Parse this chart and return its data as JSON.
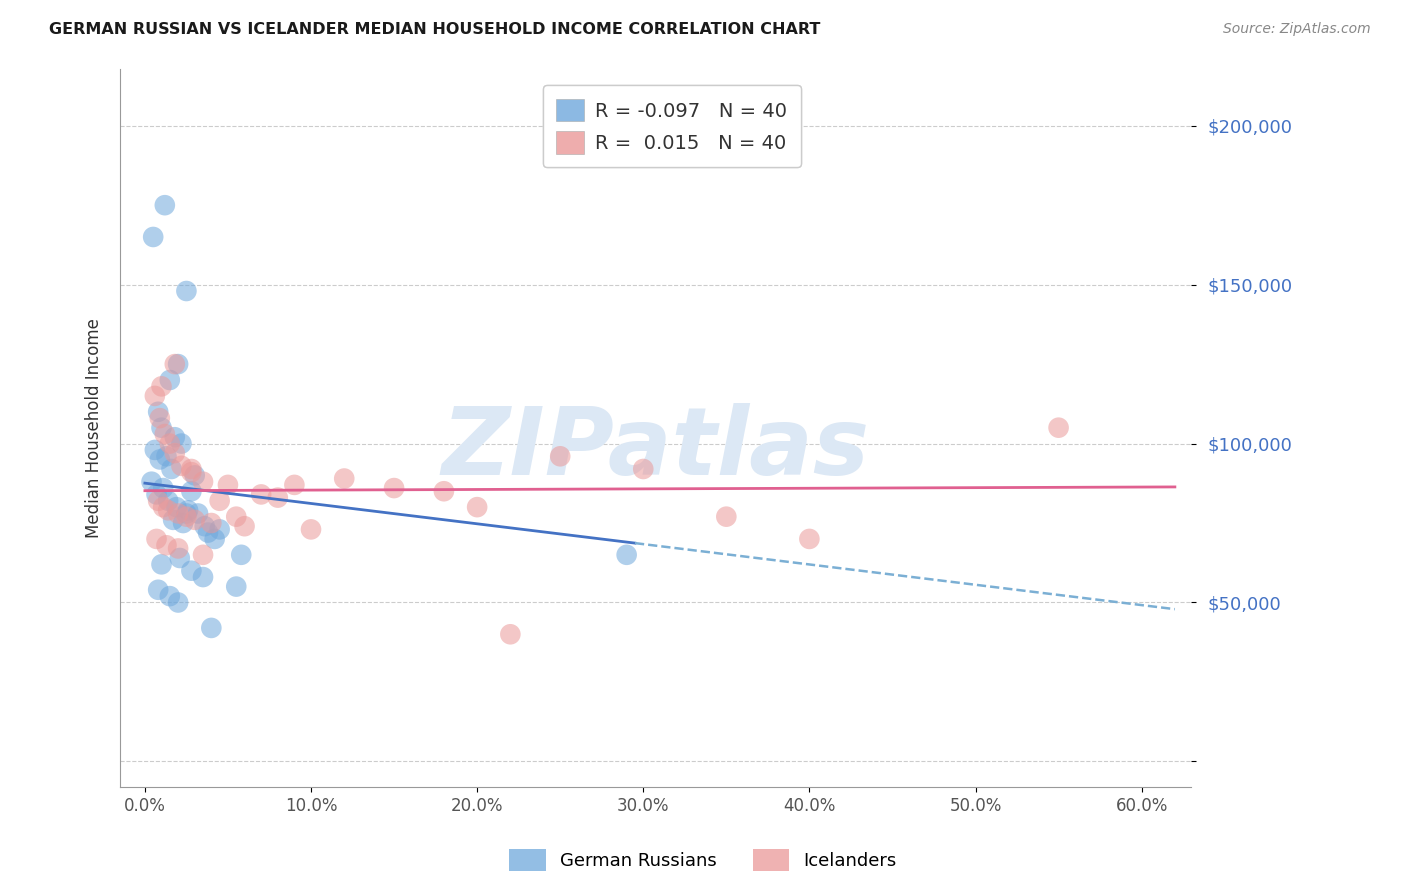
{
  "title": "GERMAN RUSSIAN VS ICELANDER MEDIAN HOUSEHOLD INCOME CORRELATION CHART",
  "source": "Source: ZipAtlas.com",
  "ylabel": "Median Household Income",
  "ytick_vals": [
    0,
    50000,
    100000,
    150000,
    200000
  ],
  "ytick_labels": [
    "",
    "$50,000",
    "$100,000",
    "$150,000",
    "$200,000"
  ],
  "xtick_vals": [
    0,
    10,
    20,
    30,
    40,
    50,
    60
  ],
  "xtick_labels": [
    "0.0%",
    "10.0%",
    "20.0%",
    "30.0%",
    "40.0%",
    "50.0%",
    "60.0%"
  ],
  "ylim": [
    -8000,
    218000
  ],
  "xlim": [
    -1.5,
    63.0
  ],
  "blue_color": "#6fa8dc",
  "pink_color": "#ea9999",
  "blue_line_color": "#4472c4",
  "pink_line_color": "#e06090",
  "dash_line_color": "#7bafd4",
  "tick_color": "#4472c4",
  "watermark_text": "ZIPatlas",
  "watermark_color": "#dce8f5",
  "label1": "German Russians",
  "label2": "Icelanders",
  "legend_R1": "-0.097",
  "legend_R2": "0.015",
  "legend_N1": "40",
  "legend_N2": "40",
  "blue_x": [
    1.2,
    2.5,
    0.5,
    1.5,
    2.0,
    0.8,
    1.0,
    1.8,
    2.2,
    0.6,
    1.3,
    0.9,
    1.6,
    3.0,
    0.4,
    1.1,
    2.8,
    0.7,
    1.4,
    1.9,
    2.6,
    3.2,
    1.7,
    2.3,
    3.6,
    4.5,
    3.8,
    4.2,
    5.8,
    29.0,
    2.1,
    1.0,
    2.8,
    3.5,
    5.5,
    0.8,
    1.5,
    2.0,
    4.0,
    2.5
  ],
  "blue_y": [
    175000,
    148000,
    165000,
    120000,
    125000,
    110000,
    105000,
    102000,
    100000,
    98000,
    96000,
    95000,
    92000,
    90000,
    88000,
    86000,
    85000,
    84000,
    82000,
    80000,
    79000,
    78000,
    76000,
    75000,
    74000,
    73000,
    72000,
    70000,
    65000,
    65000,
    64000,
    62000,
    60000,
    58000,
    55000,
    54000,
    52000,
    50000,
    42000,
    78000
  ],
  "pink_x": [
    0.6,
    0.9,
    1.2,
    1.5,
    1.8,
    2.2,
    2.8,
    3.5,
    5.0,
    7.0,
    0.8,
    1.1,
    1.4,
    2.0,
    2.5,
    3.0,
    4.0,
    6.0,
    10.0,
    15.0,
    0.7,
    1.3,
    2.0,
    3.5,
    8.0,
    20.0,
    1.0,
    1.8,
    2.8,
    4.5,
    55.0,
    40.0,
    30.0,
    25.0,
    18.0,
    12.0,
    35.0,
    22.0,
    9.0,
    5.5
  ],
  "pink_y": [
    115000,
    108000,
    103000,
    100000,
    97000,
    93000,
    91000,
    88000,
    87000,
    84000,
    82000,
    80000,
    79000,
    78000,
    77000,
    76000,
    75000,
    74000,
    73000,
    86000,
    70000,
    68000,
    67000,
    65000,
    83000,
    80000,
    118000,
    125000,
    92000,
    82000,
    105000,
    70000,
    92000,
    96000,
    85000,
    89000,
    77000,
    40000,
    87000,
    77000
  ]
}
